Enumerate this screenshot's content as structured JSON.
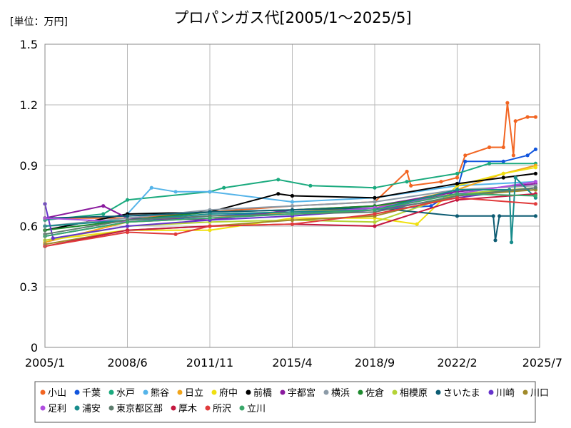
{
  "chart_data": {
    "type": "line",
    "title": "プロパンガス代[2005/1～2025/5]",
    "unit_label": "[単位：万円]",
    "x_start": "2005-01",
    "x_end": "2025-07",
    "x_ticks": [
      "2005/1",
      "2008/6",
      "2011/11",
      "2015/4",
      "2018/9",
      "2022/2",
      "2025/7"
    ],
    "ylim": [
      0,
      1.5
    ],
    "y_ticks": [
      "0",
      "0.3",
      "0.6",
      "0.9",
      "1.2",
      "1.5"
    ],
    "grid": true,
    "legend_position": "bottom",
    "series": [
      {
        "name": "小山",
        "color": "#f26522",
        "points": [
          [
            "2005-01",
            0.64
          ],
          [
            "2008-06",
            0.64
          ],
          [
            "2011-11",
            0.67
          ],
          [
            "2015-04",
            0.7
          ],
          [
            "2018-09",
            0.72
          ],
          [
            "2020-01",
            0.87
          ],
          [
            "2020-03",
            0.8
          ],
          [
            "2021-06",
            0.82
          ],
          [
            "2022-02",
            0.84
          ],
          [
            "2022-06",
            0.95
          ],
          [
            "2023-06",
            0.99
          ],
          [
            "2024-01",
            0.99
          ],
          [
            "2024-03",
            1.21
          ],
          [
            "2024-06",
            0.95
          ],
          [
            "2024-07",
            1.12
          ],
          [
            "2025-01",
            1.14
          ],
          [
            "2025-05",
            1.14
          ]
        ]
      },
      {
        "name": "千葉",
        "color": "#1155dd",
        "points": [
          [
            "2005-01",
            0.55
          ],
          [
            "2008-06",
            0.62
          ],
          [
            "2011-11",
            0.65
          ],
          [
            "2015-04",
            0.67
          ],
          [
            "2018-09",
            0.68
          ],
          [
            "2021-01",
            0.7
          ],
          [
            "2022-02",
            0.78
          ],
          [
            "2022-06",
            0.92
          ],
          [
            "2024-01",
            0.92
          ],
          [
            "2025-01",
            0.95
          ],
          [
            "2025-05",
            0.98
          ]
        ]
      },
      {
        "name": "水戸",
        "color": "#1aaa7e",
        "points": [
          [
            "2005-01",
            0.63
          ],
          [
            "2007-06",
            0.66
          ],
          [
            "2008-06",
            0.73
          ],
          [
            "2011-11",
            0.77
          ],
          [
            "2012-06",
            0.79
          ],
          [
            "2014-09",
            0.83
          ],
          [
            "2016-01",
            0.8
          ],
          [
            "2018-09",
            0.79
          ],
          [
            "2020-01",
            0.82
          ],
          [
            "2022-02",
            0.86
          ],
          [
            "2023-06",
            0.91
          ],
          [
            "2025-05",
            0.91
          ]
        ]
      },
      {
        "name": "熊谷",
        "color": "#55b4e9",
        "points": [
          [
            "2005-01",
            0.58
          ],
          [
            "2008-06",
            0.66
          ],
          [
            "2009-06",
            0.79
          ],
          [
            "2010-06",
            0.77
          ],
          [
            "2011-11",
            0.77
          ],
          [
            "2015-04",
            0.72
          ],
          [
            "2018-09",
            0.74
          ],
          [
            "2022-02",
            0.8
          ],
          [
            "2025-05",
            0.82
          ]
        ]
      },
      {
        "name": "日立",
        "color": "#f2a51a",
        "points": [
          [
            "2005-01",
            0.52
          ],
          [
            "2008-06",
            0.62
          ],
          [
            "2011-11",
            0.64
          ],
          [
            "2015-04",
            0.67
          ],
          [
            "2018-09",
            0.69
          ],
          [
            "2022-02",
            0.78
          ],
          [
            "2024-01",
            0.86
          ],
          [
            "2025-05",
            0.9
          ]
        ]
      },
      {
        "name": "府中",
        "color": "#f0e010",
        "points": [
          [
            "2005-01",
            0.53
          ],
          [
            "2008-06",
            0.58
          ],
          [
            "2011-11",
            0.58
          ],
          [
            "2015-04",
            0.64
          ],
          [
            "2018-09",
            0.64
          ],
          [
            "2020-06",
            0.61
          ],
          [
            "2022-02",
            0.8
          ],
          [
            "2024-01",
            0.86
          ],
          [
            "2025-05",
            0.89
          ]
        ]
      },
      {
        "name": "前橋",
        "color": "#000000",
        "points": [
          [
            "2005-01",
            0.58
          ],
          [
            "2008-06",
            0.66
          ],
          [
            "2011-11",
            0.67
          ],
          [
            "2014-09",
            0.76
          ],
          [
            "2015-04",
            0.75
          ],
          [
            "2018-09",
            0.74
          ],
          [
            "2022-02",
            0.81
          ],
          [
            "2024-01",
            0.84
          ],
          [
            "2025-05",
            0.86
          ]
        ]
      },
      {
        "name": "宇都宮",
        "color": "#8a1a9e",
        "points": [
          [
            "2005-01",
            0.64
          ],
          [
            "2007-06",
            0.7
          ],
          [
            "2008-06",
            0.64
          ],
          [
            "2011-11",
            0.63
          ],
          [
            "2015-04",
            0.68
          ],
          [
            "2018-09",
            0.7
          ],
          [
            "2022-02",
            0.77
          ],
          [
            "2025-05",
            0.81
          ]
        ]
      },
      {
        "name": "横浜",
        "color": "#8c9ba8",
        "points": [
          [
            "2005-01",
            0.6
          ],
          [
            "2008-06",
            0.64
          ],
          [
            "2011-11",
            0.68
          ],
          [
            "2015-04",
            0.7
          ],
          [
            "2018-09",
            0.72
          ],
          [
            "2022-02",
            0.78
          ],
          [
            "2025-05",
            0.8
          ]
        ]
      },
      {
        "name": "佐倉",
        "color": "#1e8a2e",
        "points": [
          [
            "2005-01",
            0.58
          ],
          [
            "2008-06",
            0.63
          ],
          [
            "2011-11",
            0.67
          ],
          [
            "2015-04",
            0.68
          ],
          [
            "2018-09",
            0.7
          ],
          [
            "2022-02",
            0.76
          ],
          [
            "2025-05",
            0.78
          ]
        ]
      },
      {
        "name": "相模原",
        "color": "#b5d336",
        "points": [
          [
            "2005-01",
            0.53
          ],
          [
            "2008-06",
            0.6
          ],
          [
            "2011-11",
            0.62
          ],
          [
            "2015-04",
            0.63
          ],
          [
            "2018-09",
            0.62
          ],
          [
            "2022-02",
            0.76
          ],
          [
            "2025-05",
            0.79
          ]
        ]
      },
      {
        "name": "さいたま",
        "color": "#0d5c73",
        "points": [
          [
            "2005-01",
            0.64
          ],
          [
            "2008-06",
            0.65
          ],
          [
            "2011-11",
            0.67
          ],
          [
            "2015-04",
            0.68
          ],
          [
            "2018-09",
            0.69
          ],
          [
            "2022-02",
            0.65
          ],
          [
            "2023-08",
            0.65
          ],
          [
            "2023-09",
            0.53
          ],
          [
            "2023-11",
            0.65
          ],
          [
            "2025-05",
            0.65
          ]
        ]
      },
      {
        "name": "川崎",
        "color": "#6633cc",
        "points": [
          [
            "2005-01",
            0.71
          ],
          [
            "2005-05",
            0.54
          ],
          [
            "2008-06",
            0.6
          ],
          [
            "2011-11",
            0.63
          ],
          [
            "2015-04",
            0.65
          ],
          [
            "2018-09",
            0.68
          ],
          [
            "2022-02",
            0.74
          ],
          [
            "2025-05",
            0.79
          ]
        ]
      },
      {
        "name": "川口",
        "color": "#a08a2a",
        "points": [
          [
            "2005-01",
            0.51
          ],
          [
            "2008-06",
            0.58
          ],
          [
            "2011-11",
            0.6
          ],
          [
            "2015-04",
            0.63
          ],
          [
            "2018-09",
            0.65
          ],
          [
            "2022-02",
            0.75
          ],
          [
            "2025-05",
            0.78
          ]
        ]
      },
      {
        "name": "足利",
        "color": "#b04ee0",
        "points": [
          [
            "2005-01",
            0.64
          ],
          [
            "2008-06",
            0.62
          ],
          [
            "2011-11",
            0.64
          ],
          [
            "2015-04",
            0.66
          ],
          [
            "2018-09",
            0.69
          ],
          [
            "2022-02",
            0.76
          ],
          [
            "2025-05",
            0.82
          ]
        ]
      },
      {
        "name": "浦安",
        "color": "#188c8c",
        "points": [
          [
            "2005-01",
            0.6
          ],
          [
            "2008-06",
            0.63
          ],
          [
            "2011-11",
            0.66
          ],
          [
            "2015-04",
            0.67
          ],
          [
            "2018-09",
            0.68
          ],
          [
            "2022-02",
            0.78
          ],
          [
            "2024-04",
            0.78
          ],
          [
            "2024-05",
            0.52
          ],
          [
            "2024-07",
            0.84
          ],
          [
            "2025-05",
            0.74
          ]
        ]
      },
      {
        "name": "東京都区部",
        "color": "#5e7d6e",
        "points": [
          [
            "2005-01",
            0.56
          ],
          [
            "2008-06",
            0.63
          ],
          [
            "2011-11",
            0.65
          ],
          [
            "2015-04",
            0.66
          ],
          [
            "2018-09",
            0.67
          ],
          [
            "2022-02",
            0.75
          ],
          [
            "2025-05",
            0.79
          ]
        ]
      },
      {
        "name": "厚木",
        "color": "#c41840",
        "points": [
          [
            "2005-01",
            0.5
          ],
          [
            "2008-06",
            0.58
          ],
          [
            "2011-11",
            0.6
          ],
          [
            "2015-04",
            0.61
          ],
          [
            "2018-09",
            0.6
          ],
          [
            "2022-02",
            0.73
          ],
          [
            "2025-05",
            0.76
          ]
        ]
      },
      {
        "name": "所沢",
        "color": "#e03b3b",
        "points": [
          [
            "2005-01",
            0.5
          ],
          [
            "2008-06",
            0.57
          ],
          [
            "2010-06",
            0.56
          ],
          [
            "2011-11",
            0.6
          ],
          [
            "2015-04",
            0.61
          ],
          [
            "2018-09",
            0.66
          ],
          [
            "2022-02",
            0.74
          ],
          [
            "2025-05",
            0.71
          ]
        ]
      },
      {
        "name": "立川",
        "color": "#3aa86a",
        "points": [
          [
            "2005-01",
            0.55
          ],
          [
            "2008-06",
            0.62
          ],
          [
            "2011-11",
            0.64
          ],
          [
            "2015-04",
            0.66
          ],
          [
            "2018-09",
            0.68
          ],
          [
            "2022-02",
            0.76
          ],
          [
            "2025-05",
            0.75
          ]
        ]
      }
    ]
  }
}
